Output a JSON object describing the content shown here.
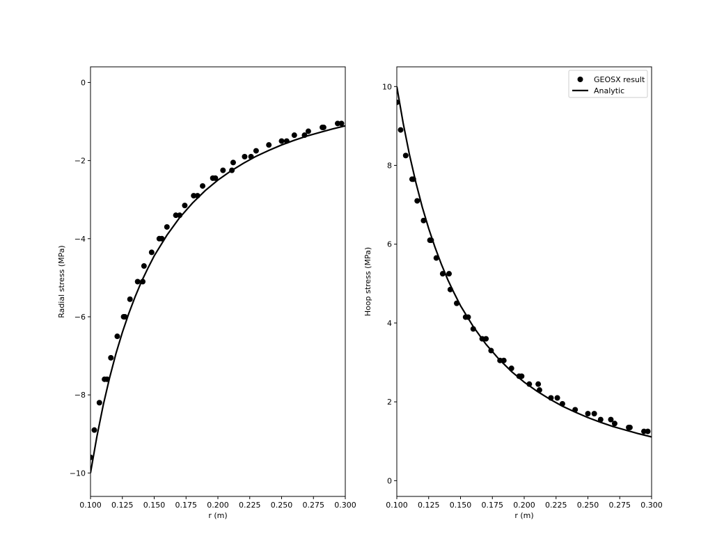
{
  "chart_data": [
    {
      "type": "scatter",
      "xlabel": "r (m)",
      "ylabel": "Radial stress (MPa)",
      "xlim": [
        0.1,
        0.3
      ],
      "ylim": [
        -10.6,
        0.4
      ],
      "xticks": [
        0.1,
        0.125,
        0.15,
        0.175,
        0.2,
        0.225,
        0.25,
        0.275,
        0.3
      ],
      "xtick_labels": [
        "0.100",
        "0.125",
        "0.150",
        "0.175",
        "0.200",
        "0.225",
        "0.250",
        "0.275",
        "0.300"
      ],
      "yticks": [
        -10,
        -8,
        -6,
        -4,
        -2,
        0
      ],
      "ytick_labels": [
        "−10",
        "−8",
        "−6",
        "−4",
        "−2",
        "0"
      ],
      "series": [
        {
          "name": "GEOSX result",
          "kind": "points",
          "color": "#000000",
          "x": [
            0.1,
            0.103,
            0.107,
            0.111,
            0.113,
            0.116,
            0.121,
            0.126,
            0.127,
            0.131,
            0.137,
            0.141,
            0.142,
            0.148,
            0.154,
            0.156,
            0.16,
            0.167,
            0.17,
            0.174,
            0.181,
            0.184,
            0.188,
            0.196,
            0.198,
            0.204,
            0.211,
            0.212,
            0.221,
            0.226,
            0.23,
            0.24,
            0.25,
            0.254,
            0.26,
            0.268,
            0.271,
            0.282,
            0.283,
            0.294,
            0.297
          ],
          "y": [
            -9.6,
            -8.9,
            -8.2,
            -7.6,
            -7.6,
            -7.05,
            -6.5,
            -6.0,
            -6.0,
            -5.55,
            -5.1,
            -5.1,
            -4.7,
            -4.35,
            -4.0,
            -4.0,
            -3.7,
            -3.4,
            -3.4,
            -3.15,
            -2.9,
            -2.9,
            -2.65,
            -2.45,
            -2.45,
            -2.25,
            -2.25,
            -2.05,
            -1.9,
            -1.9,
            -1.75,
            -1.6,
            -1.5,
            -1.5,
            -1.35,
            -1.35,
            -1.25,
            -1.15,
            -1.15,
            -1.05,
            -1.05
          ]
        },
        {
          "name": "Analytic",
          "kind": "line",
          "color": "#000000",
          "x": [
            0.1,
            0.105,
            0.11,
            0.115,
            0.12,
            0.125,
            0.13,
            0.135,
            0.14,
            0.145,
            0.15,
            0.16,
            0.17,
            0.18,
            0.19,
            0.2,
            0.21,
            0.22,
            0.23,
            0.24,
            0.25,
            0.26,
            0.27,
            0.28,
            0.29,
            0.3
          ],
          "y": [
            -10.0,
            -9.07,
            -8.26,
            -7.56,
            -6.94,
            -6.4,
            -5.92,
            -5.49,
            -5.1,
            -4.76,
            -4.44,
            -3.91,
            -3.46,
            -3.09,
            -2.77,
            -2.5,
            -2.27,
            -2.07,
            -1.89,
            -1.74,
            -1.6,
            -1.48,
            -1.37,
            -1.28,
            -1.19,
            -1.11
          ]
        }
      ],
      "legend": null
    },
    {
      "type": "scatter",
      "xlabel": "r (m)",
      "ylabel": "Hoop stress (MPa)",
      "xlim": [
        0.1,
        0.3
      ],
      "ylim": [
        -0.4,
        10.5
      ],
      "xticks": [
        0.1,
        0.125,
        0.15,
        0.175,
        0.2,
        0.225,
        0.25,
        0.275,
        0.3
      ],
      "xtick_labels": [
        "0.100",
        "0.125",
        "0.150",
        "0.175",
        "0.200",
        "0.225",
        "0.250",
        "0.275",
        "0.300"
      ],
      "yticks": [
        0,
        2,
        4,
        6,
        8,
        10
      ],
      "ytick_labels": [
        "0",
        "2",
        "4",
        "6",
        "8",
        "10"
      ],
      "series": [
        {
          "name": "GEOSX result",
          "kind": "points",
          "color": "#000000",
          "x": [
            0.1,
            0.103,
            0.107,
            0.112,
            0.113,
            0.116,
            0.121,
            0.126,
            0.127,
            0.131,
            0.136,
            0.141,
            0.142,
            0.147,
            0.154,
            0.156,
            0.16,
            0.167,
            0.17,
            0.174,
            0.181,
            0.184,
            0.19,
            0.196,
            0.198,
            0.204,
            0.211,
            0.212,
            0.221,
            0.226,
            0.23,
            0.24,
            0.25,
            0.255,
            0.26,
            0.268,
            0.271,
            0.282,
            0.283,
            0.294,
            0.297
          ],
          "y": [
            9.6,
            8.9,
            8.25,
            7.65,
            7.65,
            7.1,
            6.6,
            6.1,
            6.1,
            5.65,
            5.25,
            5.25,
            4.85,
            4.5,
            4.15,
            4.15,
            3.85,
            3.6,
            3.6,
            3.3,
            3.05,
            3.05,
            2.85,
            2.65,
            2.65,
            2.45,
            2.45,
            2.3,
            2.1,
            2.1,
            1.95,
            1.8,
            1.7,
            1.7,
            1.55,
            1.55,
            1.45,
            1.35,
            1.35,
            1.25,
            1.25
          ]
        },
        {
          "name": "Analytic",
          "kind": "line",
          "color": "#000000",
          "x": [
            0.1,
            0.105,
            0.11,
            0.115,
            0.12,
            0.125,
            0.13,
            0.135,
            0.14,
            0.145,
            0.15,
            0.16,
            0.17,
            0.18,
            0.19,
            0.2,
            0.21,
            0.22,
            0.23,
            0.24,
            0.25,
            0.26,
            0.27,
            0.28,
            0.29,
            0.3
          ],
          "y": [
            10.0,
            9.07,
            8.26,
            7.56,
            6.94,
            6.4,
            5.92,
            5.49,
            5.1,
            4.76,
            4.44,
            3.91,
            3.46,
            3.09,
            2.77,
            2.5,
            2.27,
            2.07,
            1.89,
            1.74,
            1.6,
            1.48,
            1.37,
            1.28,
            1.19,
            1.11
          ]
        }
      ],
      "legend": "top-right"
    }
  ]
}
